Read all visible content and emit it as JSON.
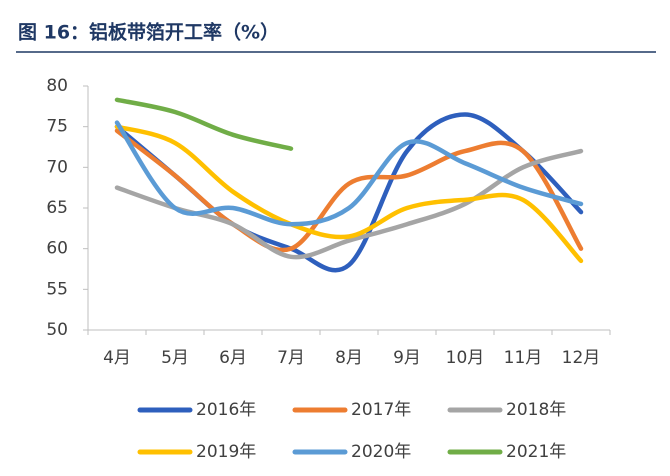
{
  "chart_data": {
    "type": "line",
    "title": "图 16：铝板带箔开工率（%）",
    "categories": [
      "4月",
      "5月",
      "6月",
      "7月",
      "8月",
      "9月",
      "10月",
      "11月",
      "12月"
    ],
    "series": [
      {
        "name": "2016年",
        "color": "#2e5fbd",
        "values": [
          75,
          69,
          63,
          60,
          58,
          72,
          76.5,
          72,
          64.5
        ]
      },
      {
        "name": "2017年",
        "color": "#ed7d31",
        "values": [
          74.5,
          69,
          63,
          60,
          68,
          69,
          72,
          72,
          60
        ]
      },
      {
        "name": "2018年",
        "color": "#a5a5a5",
        "values": [
          67.5,
          65,
          63,
          59,
          61,
          63,
          65.5,
          70,
          72
        ]
      },
      {
        "name": "2019年",
        "color": "#ffc000",
        "values": [
          75,
          73,
          67,
          63,
          61.5,
          65,
          66,
          66,
          58.5
        ]
      },
      {
        "name": "2020年",
        "color": "#5b9bd5",
        "values": [
          75.5,
          65,
          65,
          63,
          65,
          73,
          70.5,
          67.5,
          65.5
        ]
      },
      {
        "name": "2021年",
        "color": "#70ad47",
        "values": [
          78.3,
          76.8,
          74,
          72.3,
          null,
          null,
          null,
          null,
          null
        ]
      }
    ],
    "ylim": [
      50,
      80
    ],
    "yticks": [
      50,
      55,
      60,
      65,
      70,
      75,
      80
    ]
  }
}
